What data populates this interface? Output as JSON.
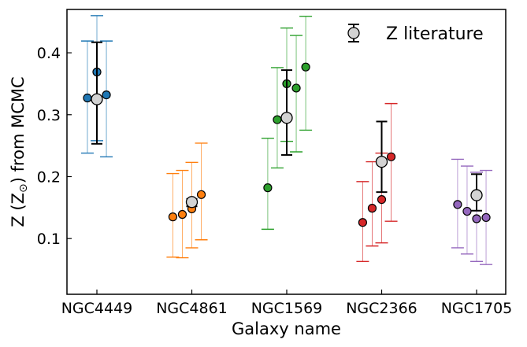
{
  "chart_data": {
    "type": "scatter",
    "xlabel": "Galaxy name",
    "ylabel_prefix": "Z (Z",
    "ylabel_sub": "⊙",
    "ylabel_suffix": ") from MCMC",
    "categories": [
      "NGC4449",
      "NGC4861",
      "NGC1569",
      "NGC2366",
      "NGC1705"
    ],
    "ylim": [
      0.01,
      0.47
    ],
    "yticks": [
      0.1,
      0.2,
      0.3,
      0.4
    ],
    "ytick_labels": [
      "0.1",
      "0.2",
      "0.3",
      "0.4"
    ],
    "legend": {
      "label": "Z literature",
      "placement": "top-right"
    },
    "groups": [
      {
        "category": "NGC4449",
        "color": "#1f77b4",
        "points": [
          {
            "offset": -0.1,
            "y": 0.327,
            "lo": 0.238,
            "hi": 0.419
          },
          {
            "offset": 0.0,
            "y": 0.369,
            "lo": 0.258,
            "hi": 0.46
          },
          {
            "offset": 0.1,
            "y": 0.332,
            "lo": 0.232,
            "hi": 0.419
          }
        ],
        "literature": {
          "y": 0.325,
          "lo": 0.253,
          "hi": 0.417
        }
      },
      {
        "category": "NGC4861",
        "color": "#ff7f0e",
        "points": [
          {
            "offset": -0.2,
            "y": 0.135,
            "lo": 0.07,
            "hi": 0.205
          },
          {
            "offset": -0.1,
            "y": 0.139,
            "lo": 0.069,
            "hi": 0.21
          },
          {
            "offset": 0.0,
            "y": 0.148,
            "lo": 0.085,
            "hi": 0.223
          },
          {
            "offset": 0.1,
            "y": 0.171,
            "lo": 0.098,
            "hi": 0.254
          }
        ],
        "literature": {
          "y": 0.159,
          "lo": 0.152,
          "hi": 0.164
        }
      },
      {
        "category": "NGC1569",
        "color": "#2ca02c",
        "points": [
          {
            "offset": -0.2,
            "y": 0.182,
            "lo": 0.115,
            "hi": 0.262
          },
          {
            "offset": -0.1,
            "y": 0.292,
            "lo": 0.214,
            "hi": 0.376
          },
          {
            "offset": 0.0,
            "y": 0.35,
            "lo": 0.257,
            "hi": 0.44
          },
          {
            "offset": 0.1,
            "y": 0.343,
            "lo": 0.24,
            "hi": 0.428
          },
          {
            "offset": 0.2,
            "y": 0.377,
            "lo": 0.275,
            "hi": 0.459
          }
        ],
        "literature": {
          "y": 0.295,
          "lo": 0.235,
          "hi": 0.372
        }
      },
      {
        "category": "NGC2366",
        "color": "#d62728",
        "points": [
          {
            "offset": -0.2,
            "y": 0.126,
            "lo": 0.063,
            "hi": 0.192
          },
          {
            "offset": -0.1,
            "y": 0.149,
            "lo": 0.088,
            "hi": 0.224
          },
          {
            "offset": 0.0,
            "y": 0.163,
            "lo": 0.093,
            "hi": 0.238
          },
          {
            "offset": 0.1,
            "y": 0.232,
            "lo": 0.128,
            "hi": 0.318
          }
        ],
        "literature": {
          "y": 0.224,
          "lo": 0.175,
          "hi": 0.289
        }
      },
      {
        "category": "NGC1705",
        "color": "#9467bd",
        "points": [
          {
            "offset": -0.2,
            "y": 0.155,
            "lo": 0.085,
            "hi": 0.228
          },
          {
            "offset": -0.1,
            "y": 0.144,
            "lo": 0.075,
            "hi": 0.217
          },
          {
            "offset": 0.0,
            "y": 0.132,
            "lo": 0.063,
            "hi": 0.207
          },
          {
            "offset": 0.1,
            "y": 0.134,
            "lo": 0.058,
            "hi": 0.21
          }
        ],
        "literature": {
          "y": 0.17,
          "lo": 0.145,
          "hi": 0.204
        }
      }
    ]
  }
}
